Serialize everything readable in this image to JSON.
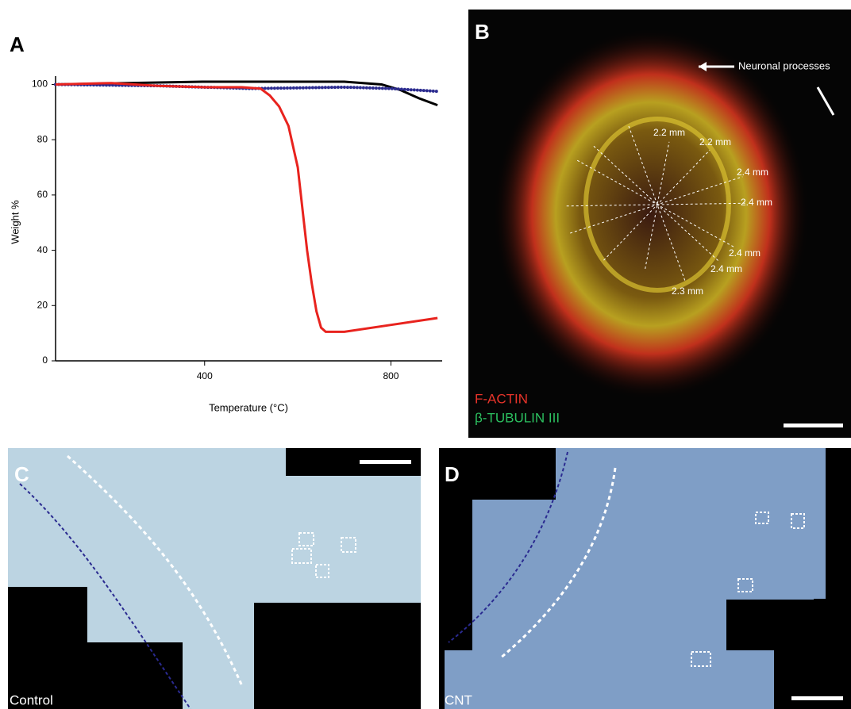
{
  "chart_data": {
    "type": "line",
    "panel_label": "A",
    "xlabel": "Temperature (°C)",
    "ylabel": "Weight %",
    "xlim": [
      80,
      910
    ],
    "ylim": [
      0,
      103
    ],
    "xticks": [
      400,
      800
    ],
    "yticks": [
      0,
      20,
      40,
      60,
      80,
      100
    ],
    "series": [
      {
        "color": "#000000",
        "x": [
          80,
          400,
          700,
          780,
          820,
          860,
          900
        ],
        "values": [
          100,
          101,
          101,
          100,
          98,
          95,
          92.5
        ]
      },
      {
        "color": "#2b2b8f",
        "dotted": true,
        "x": [
          80,
          300,
          500,
          700,
          800,
          900
        ],
        "values": [
          100,
          99.5,
          98.5,
          99,
          98.5,
          97.5
        ]
      },
      {
        "color": "#e8231e",
        "x": [
          80,
          200,
          300,
          400,
          480,
          520,
          540,
          560,
          580,
          600,
          610,
          620,
          630,
          640,
          650,
          660,
          700,
          800,
          900
        ],
        "values": [
          100,
          100.5,
          99.5,
          99,
          99,
          98.5,
          96,
          92,
          85,
          70,
          55,
          40,
          28,
          18,
          12,
          10.5,
          10.5,
          13,
          15.5
        ]
      }
    ]
  },
  "panels": {
    "b": {
      "label": "B",
      "annotation": "Neuronal processes",
      "measurements": [
        "2.2 mm",
        "2.2 mm",
        "2.4 mm",
        "2.4 mm",
        "2.4 mm",
        "2.4 mm",
        "2.3 mm"
      ],
      "legend": [
        "F-ACTIN",
        "β-TUBULIN III"
      ]
    },
    "c": {
      "label": "C",
      "caption": "Control"
    },
    "d": {
      "label": "D",
      "caption": "CNT"
    }
  }
}
